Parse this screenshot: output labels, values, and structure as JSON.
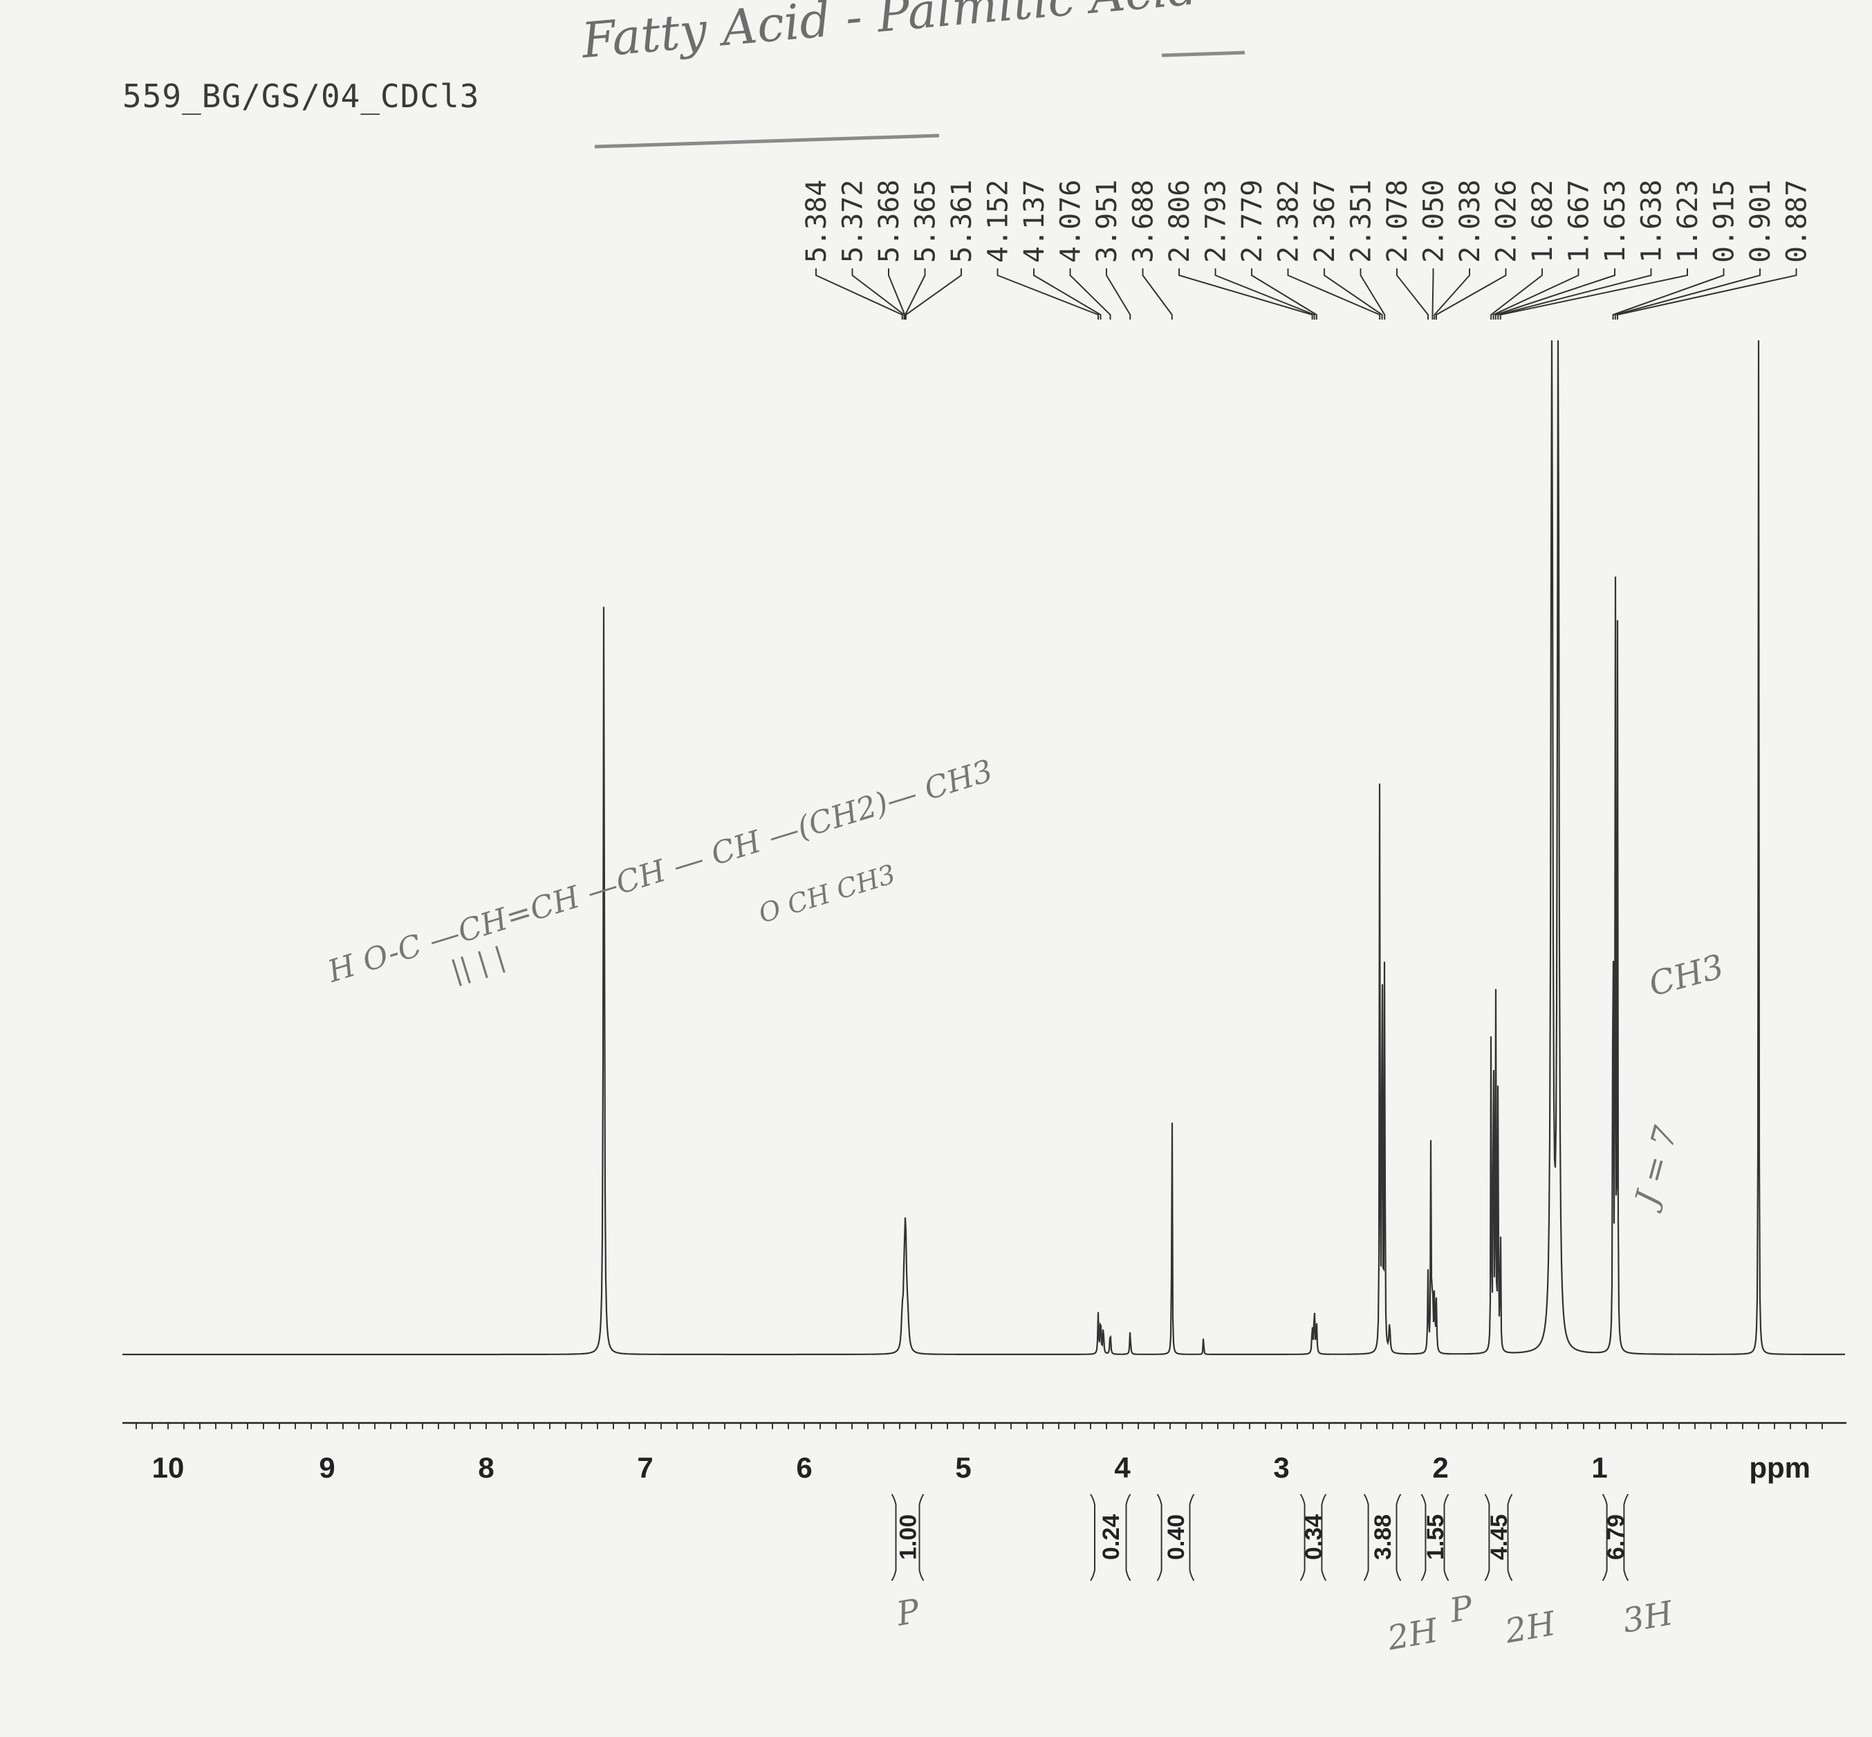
{
  "header": {
    "sample_id": "559_BG/GS/04_CDCl3",
    "handwritten_title": "Fatty Acid - Palmitic Acid"
  },
  "chart_data": {
    "type": "line",
    "xlabel": "ppm",
    "xlim": [
      10.3,
      -0.55
    ],
    "x_reversed": true,
    "major_ticks": [
      10,
      9,
      8,
      7,
      6,
      5,
      4,
      3,
      2,
      1
    ],
    "tick_labels": [
      "10",
      "9",
      "8",
      "7",
      "6",
      "5",
      "4",
      "3",
      "2",
      "1"
    ],
    "peak_labels": [
      "5.384",
      "5.372",
      "5.368",
      "5.365",
      "5.361",
      "4.152",
      "4.137",
      "4.076",
      "3.951",
      "3.688",
      "2.806",
      "2.793",
      "2.779",
      "2.382",
      "2.367",
      "2.351",
      "2.078",
      "2.050",
      "2.038",
      "2.026",
      "1.682",
      "1.667",
      "1.653",
      "1.638",
      "1.623",
      "0.915",
      "0.901",
      "0.887"
    ],
    "peaks": [
      {
        "ppm": 7.26,
        "height": 0.77,
        "width": 0.004
      },
      {
        "ppm": 5.384,
        "height": 0.03,
        "width": 0.006
      },
      {
        "ppm": 5.372,
        "height": 0.05,
        "width": 0.006
      },
      {
        "ppm": 5.365,
        "height": 0.07,
        "width": 0.006
      },
      {
        "ppm": 5.361,
        "height": 0.05,
        "width": 0.006
      },
      {
        "ppm": 5.35,
        "height": 0.03,
        "width": 0.008
      },
      {
        "ppm": 4.152,
        "height": 0.04,
        "width": 0.003
      },
      {
        "ppm": 4.137,
        "height": 0.04,
        "width": 0.003
      },
      {
        "ppm": 4.12,
        "height": 0.03,
        "width": 0.003
      },
      {
        "ppm": 4.076,
        "height": 0.025,
        "width": 0.003
      },
      {
        "ppm": 3.951,
        "height": 0.025,
        "width": 0.003
      },
      {
        "ppm": 3.688,
        "height": 0.29,
        "width": 0.002
      },
      {
        "ppm": 3.49,
        "height": 0.022,
        "width": 0.002
      },
      {
        "ppm": 2.806,
        "height": 0.03,
        "width": 0.003
      },
      {
        "ppm": 2.793,
        "height": 0.05,
        "width": 0.003
      },
      {
        "ppm": 2.779,
        "height": 0.03,
        "width": 0.003
      },
      {
        "ppm": 2.382,
        "height": 0.6,
        "width": 0.002
      },
      {
        "ppm": 2.367,
        "height": 0.62,
        "width": 0.002
      },
      {
        "ppm": 2.351,
        "height": 0.5,
        "width": 0.002
      },
      {
        "ppm": 2.32,
        "height": 0.03,
        "width": 0.004
      },
      {
        "ppm": 2.078,
        "height": 0.08,
        "width": 0.003
      },
      {
        "ppm": 2.06,
        "height": 0.24,
        "width": 0.002
      },
      {
        "ppm": 2.05,
        "height": 0.07,
        "width": 0.003
      },
      {
        "ppm": 2.038,
        "height": 0.06,
        "width": 0.003
      },
      {
        "ppm": 2.026,
        "height": 0.05,
        "width": 0.003
      },
      {
        "ppm": 1.682,
        "height": 0.33,
        "width": 0.002
      },
      {
        "ppm": 1.667,
        "height": 0.47,
        "width": 0.002
      },
      {
        "ppm": 1.653,
        "height": 0.4,
        "width": 0.002
      },
      {
        "ppm": 1.638,
        "height": 0.33,
        "width": 0.002
      },
      {
        "ppm": 1.623,
        "height": 0.15,
        "width": 0.002
      },
      {
        "ppm": 1.3,
        "height": 1.15,
        "width": 0.006
      },
      {
        "ppm": 1.26,
        "height": 1.05,
        "width": 0.006
      },
      {
        "ppm": 0.915,
        "height": 0.7,
        "width": 0.002
      },
      {
        "ppm": 0.901,
        "height": 0.92,
        "width": 0.002
      },
      {
        "ppm": 0.887,
        "height": 0.7,
        "width": 0.002
      },
      {
        "ppm": 0.0,
        "height": 1.1,
        "width": 0.002
      }
    ],
    "integrals": [
      {
        "range": [
          5.45,
          5.25
        ],
        "value": "1.00"
      },
      {
        "range": [
          4.2,
          3.95
        ],
        "value": "0.24"
      },
      {
        "range": [
          3.78,
          3.55
        ],
        "value": "0.40"
      },
      {
        "range": [
          2.88,
          2.72
        ],
        "value": "0.34"
      },
      {
        "range": [
          2.48,
          2.25
        ],
        "value": "3.88"
      },
      {
        "range": [
          2.12,
          1.95
        ],
        "value": "1.55"
      },
      {
        "range": [
          1.72,
          1.55
        ],
        "value": "4.45"
      },
      {
        "range": [
          0.98,
          0.82
        ],
        "value": "6.79"
      }
    ]
  },
  "annotations": {
    "structure_line1": "H O-C —CH=CH —CH — CH —(CH2)— CH3",
    "structure_line2": "|| | |",
    "structure_line3": "O CH CH3",
    "ch3_note": "CH3",
    "j_note": "J = 7",
    "integral_notes": [
      "P",
      "2H",
      "P",
      "2H",
      "3H"
    ]
  }
}
